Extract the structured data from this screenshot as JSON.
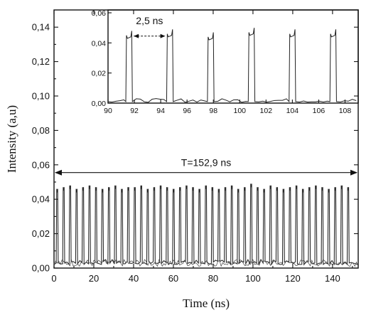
{
  "chart_data": [
    {
      "type": "line",
      "xlabel": "Time (ns)",
      "ylabel": "Intensity (a,u)",
      "xlim": [
        0,
        152.9
      ],
      "ylim": [
        0,
        0.15
      ],
      "x_ticks": [
        "0",
        "20",
        "40",
        "60",
        "80",
        "100",
        "120",
        "140"
      ],
      "y_ticks": [
        "0,00",
        "0,02",
        "0,04",
        "0,06",
        "0,08",
        "0,10",
        "0,12",
        "0,14"
      ],
      "pulse_period_ns": 3.25,
      "pulse_count": 46,
      "pulse_peak_values": [
        0.046,
        0.047,
        0.048,
        0.046,
        0.047,
        0.048,
        0.047,
        0.046,
        0.047,
        0.048,
        0.046,
        0.047,
        0.047,
        0.048,
        0.046,
        0.047,
        0.048,
        0.047,
        0.046,
        0.047,
        0.048,
        0.047,
        0.046,
        0.048,
        0.047,
        0.046,
        0.047,
        0.048,
        0.046,
        0.047,
        0.049,
        0.047,
        0.046,
        0.048,
        0.047,
        0.046,
        0.047,
        0.048,
        0.046,
        0.047,
        0.048,
        0.047,
        0.046,
        0.047,
        0.048,
        0.047
      ],
      "annotation": "T=152,9 ns",
      "grid": false
    },
    {
      "type": "line",
      "inset": true,
      "xlim": [
        90,
        109
      ],
      "ylim": [
        0,
        0.06
      ],
      "x_ticks": [
        "90",
        "92",
        "94",
        "96",
        "98",
        "100",
        "102",
        "104",
        "106",
        "108"
      ],
      "y_ticks": [
        "0,00",
        "0,02",
        "0,04",
        "0,06"
      ],
      "pulse_centers_ns": [
        91.6,
        94.7,
        97.8,
        100.9,
        104.0,
        107.1
      ],
      "pulse_width_ns": 0.5,
      "pulse_values": [
        0.045,
        0.046,
        0.044,
        0.047,
        0.046,
        0.046
      ],
      "annotation": "2,5 ns",
      "grid": false
    }
  ]
}
